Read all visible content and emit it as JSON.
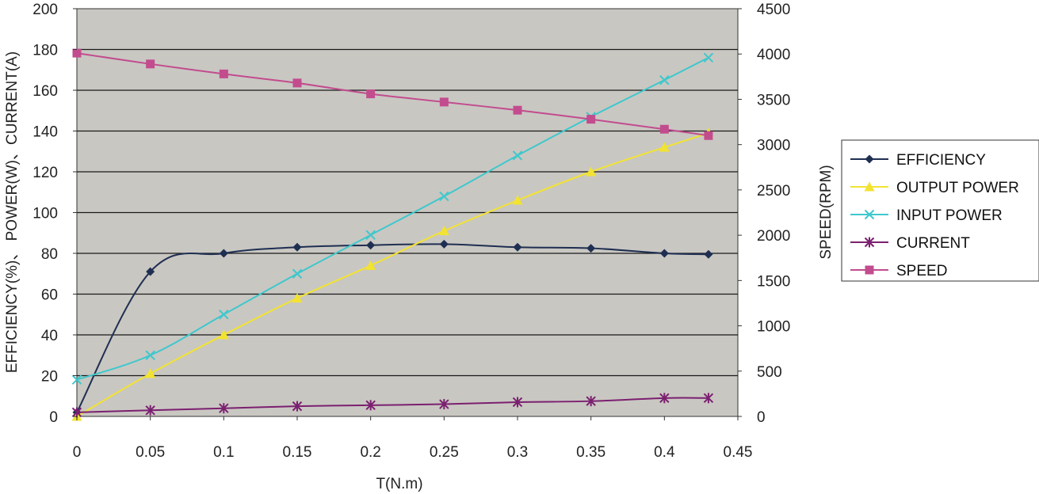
{
  "chart_data": {
    "type": "line",
    "xlabel": "T(N.m)",
    "ylabel_left": "EFFICIENCY(%)、 POWER(W)、CURRENT(A)",
    "ylabel_right": "SPEED(RPM)",
    "xlim": [
      0,
      0.45
    ],
    "ylim_left": [
      0,
      200
    ],
    "ylim_right": [
      0,
      4500
    ],
    "x_ticks": [
      "0",
      "0.05",
      "0.1",
      "0.15",
      "0.2",
      "0.25",
      "0.3",
      "0.35",
      "0.4",
      "0.45"
    ],
    "y_ticks_left": [
      "0",
      "20",
      "40",
      "60",
      "80",
      "100",
      "120",
      "140",
      "160",
      "180",
      "200"
    ],
    "y_ticks_right": [
      "0",
      "500",
      "1000",
      "1500",
      "2000",
      "2500",
      "3000",
      "3500",
      "4000",
      "4500"
    ],
    "grid": "horizontal",
    "legend_position": "right",
    "plot_background": "#c9c7c2",
    "series": [
      {
        "name": "EFFICIENCY",
        "axis": "left",
        "color": "#1f2f52",
        "marker": "diamond",
        "x": [
          0,
          0.05,
          0.1,
          0.15,
          0.2,
          0.25,
          0.3,
          0.35,
          0.4,
          0.43
        ],
        "y": [
          2,
          71,
          80,
          83,
          84,
          84.5,
          83,
          82.5,
          80,
          79.5
        ]
      },
      {
        "name": "OUTPUT POWER",
        "axis": "left",
        "color": "#f2e332",
        "marker": "triangle",
        "x": [
          0,
          0.05,
          0.1,
          0.15,
          0.2,
          0.25,
          0.3,
          0.35,
          0.4,
          0.43
        ],
        "y": [
          0,
          21,
          40,
          58,
          74,
          91,
          106,
          120,
          132,
          139
        ]
      },
      {
        "name": "INPUT POWER",
        "axis": "left",
        "color": "#3ec8cc",
        "marker": "x",
        "x": [
          0,
          0.05,
          0.1,
          0.15,
          0.2,
          0.25,
          0.3,
          0.35,
          0.4,
          0.43
        ],
        "y": [
          18,
          30,
          50,
          70,
          89,
          108,
          128,
          147,
          165,
          176
        ]
      },
      {
        "name": "CURRENT",
        "axis": "left",
        "color": "#7b2070",
        "marker": "star",
        "x": [
          0,
          0.05,
          0.1,
          0.15,
          0.2,
          0.25,
          0.3,
          0.35,
          0.4,
          0.43
        ],
        "y": [
          2,
          3,
          4,
          5,
          5.5,
          6,
          7,
          7.5,
          9,
          9
        ]
      },
      {
        "name": "SPEED",
        "axis": "right",
        "color": "#c24c8e",
        "marker": "square",
        "x": [
          0,
          0.05,
          0.1,
          0.15,
          0.2,
          0.25,
          0.3,
          0.35,
          0.4,
          0.43
        ],
        "y": [
          4010,
          3890,
          3780,
          3680,
          3560,
          3470,
          3380,
          3280,
          3170,
          3100
        ]
      }
    ]
  }
}
